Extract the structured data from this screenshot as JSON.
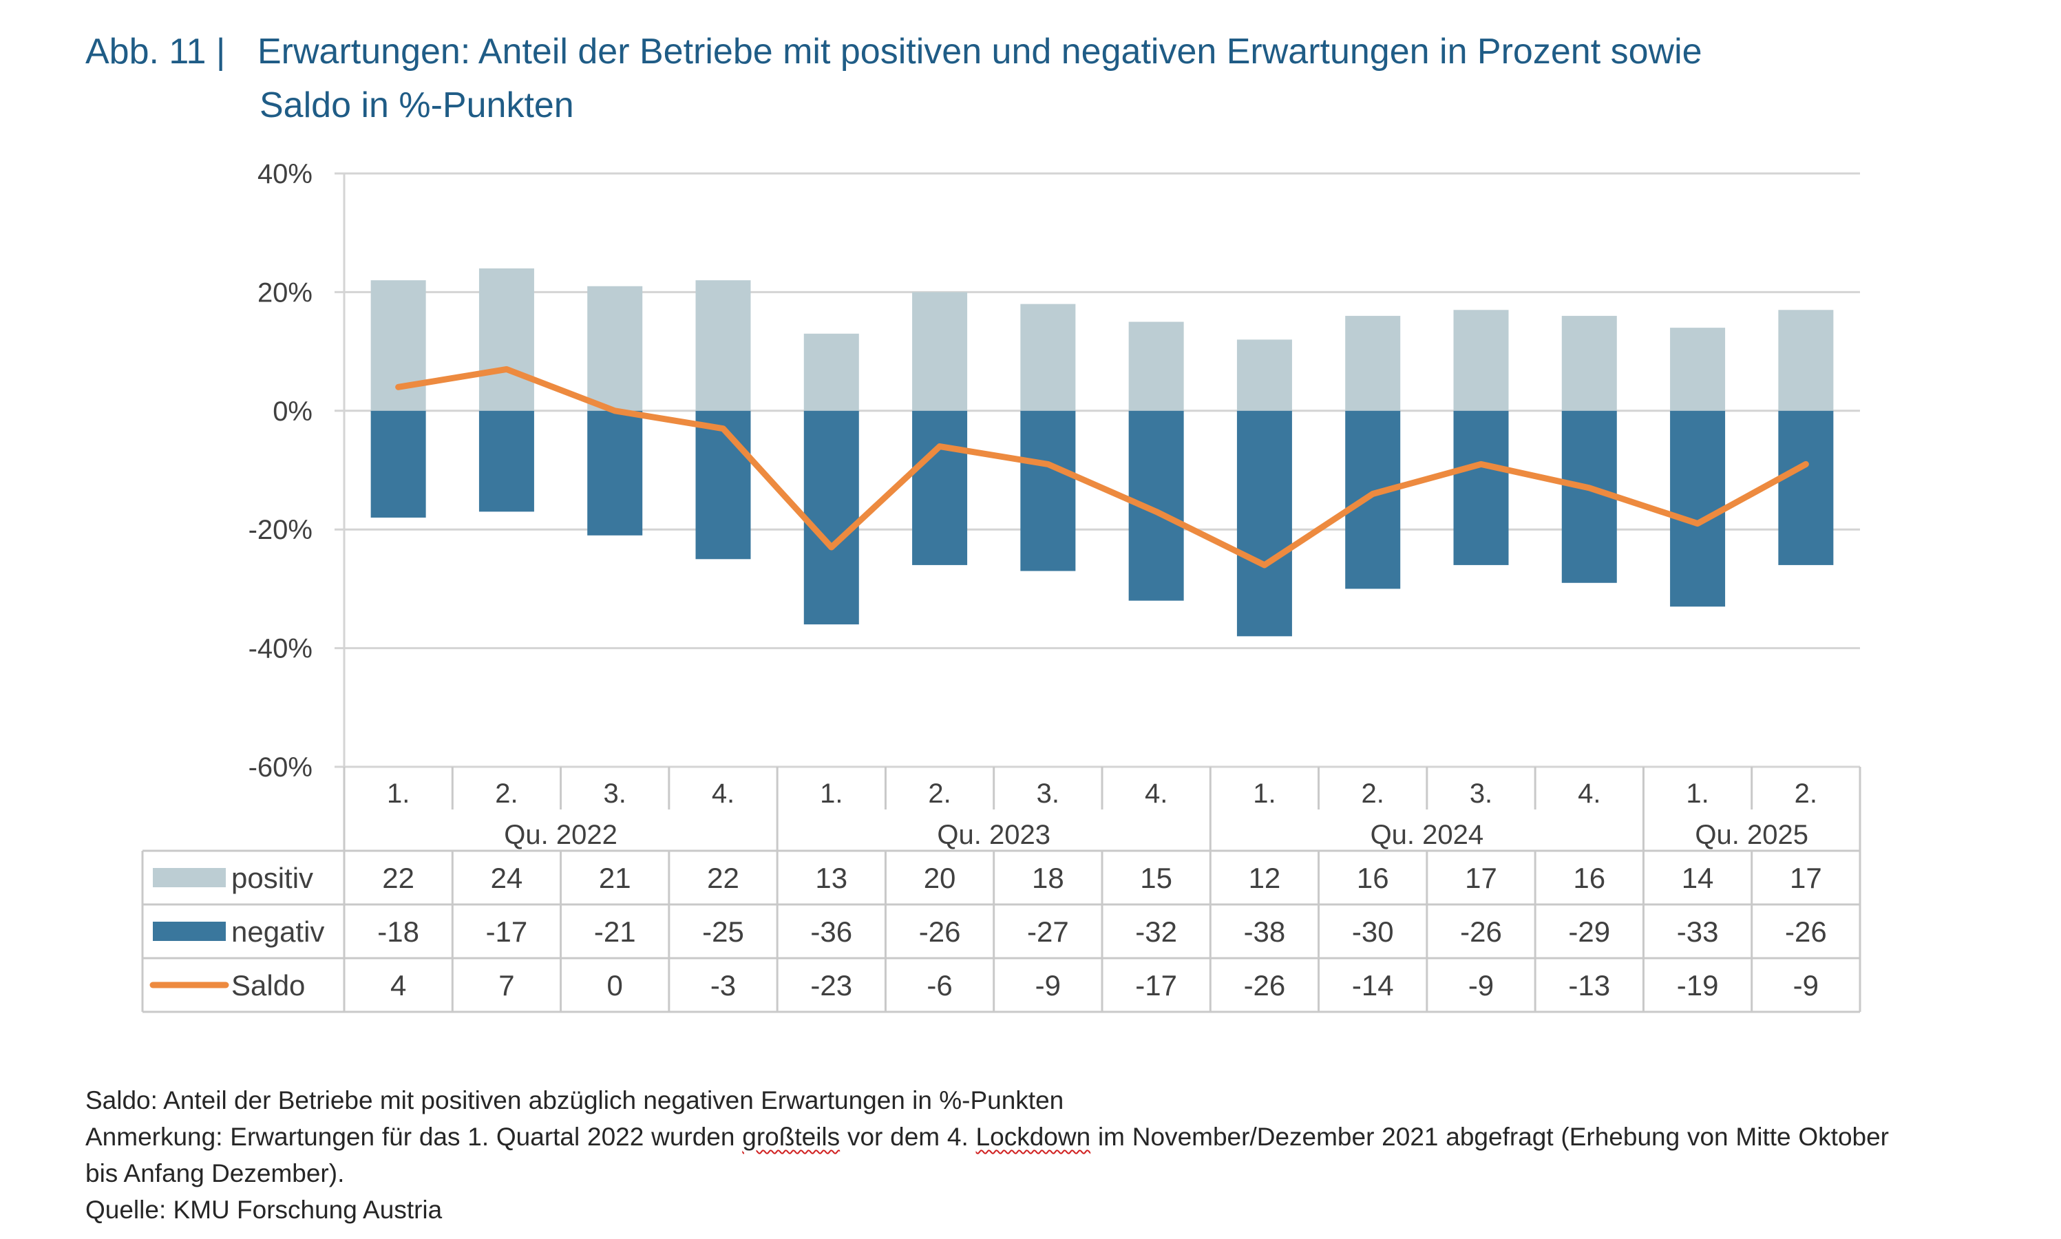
{
  "title": {
    "figure_label": "Abb. 11 |",
    "line1": "Erwartungen: Anteil der Betriebe mit positiven und negativen Erwartungen in Prozent sowie",
    "line2": "Saldo in %-Punkten"
  },
  "chart_data": {
    "type": "bar",
    "stacked": true,
    "y_tick_labels": [
      "40%",
      "20%",
      "0%",
      "-20%",
      "-40%",
      "-60%"
    ],
    "ylim": [
      -60,
      40
    ],
    "grid": true,
    "quarters": [
      "1.",
      "2.",
      "3.",
      "4.",
      "1.",
      "2.",
      "3.",
      "4.",
      "1.",
      "2.",
      "3.",
      "4.",
      "1.",
      "2."
    ],
    "year_groups": [
      {
        "label": "Qu. 2022",
        "count": 4
      },
      {
        "label": "Qu. 2023",
        "count": 4
      },
      {
        "label": "Qu. 2024",
        "count": 4
      },
      {
        "label": "Qu. 2025",
        "count": 2
      }
    ],
    "series": [
      {
        "name": "positiv",
        "kind": "bar",
        "color": "#bccdd3",
        "values": [
          22,
          24,
          21,
          22,
          13,
          20,
          18,
          15,
          12,
          16,
          17,
          16,
          14,
          17
        ]
      },
      {
        "name": "negativ",
        "kind": "bar",
        "color": "#3a779d",
        "values": [
          -18,
          -17,
          -21,
          -25,
          -36,
          -26,
          -27,
          -32,
          -38,
          -30,
          -26,
          -29,
          -33,
          -26
        ]
      },
      {
        "name": "Saldo",
        "kind": "line",
        "color": "#ed8a3f",
        "values": [
          4,
          7,
          0,
          -3,
          -23,
          -6,
          -9,
          -17,
          -26,
          -14,
          -9,
          -13,
          -19,
          -9
        ]
      }
    ]
  },
  "notes": {
    "saldo": "Saldo: Anteil der Betriebe mit positiven abzüglich negativen Erwartungen in %-Punkten",
    "remark_a": "Anmerkung: Erwartungen für das 1. Quartal 2022 wurden ",
    "remark_b": "großteils",
    "remark_c": " vor dem 4. ",
    "remark_d": "Lockdown",
    "remark_e": " im November/Dezember 2021 abgefragt (Erhebung von Mitte Oktober bis Anfang Dezember).",
    "source": "Quelle: KMU Forschung Austria"
  }
}
